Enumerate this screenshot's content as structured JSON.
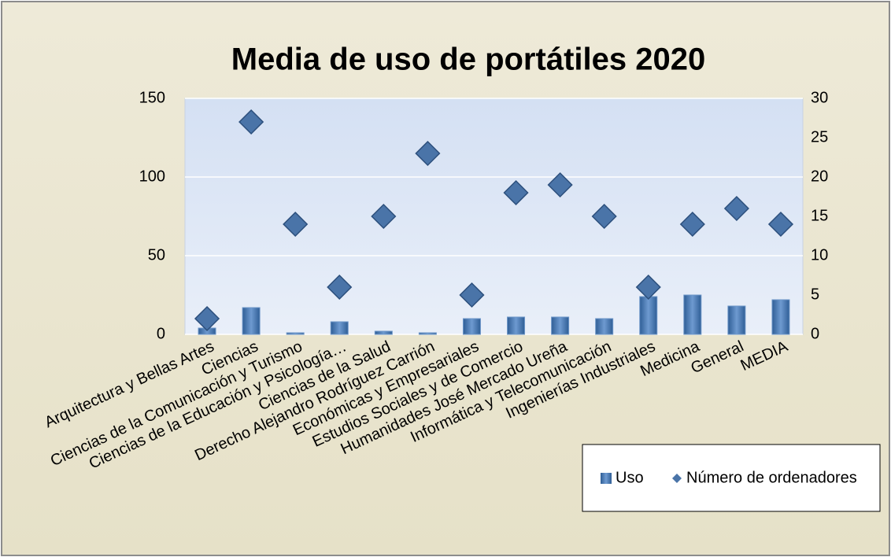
{
  "chart_data": {
    "type": "bar",
    "title": "Media de uso de portátiles 2020",
    "categories": [
      "Arquitectura y Bellas Artes",
      "Ciencias",
      "Ciencias de la Comunicación y Turismo",
      "Ciencias de la Educación y Psicología…",
      "Ciencias de la Salud",
      "Derecho Alejandro Rodríguez Carrión",
      "Económicas y Empresariales",
      "Estudios Sociales y de Comercio",
      "Humanidades José Mercado Ureña",
      "Informática y Telecomunicación",
      "Ingenierías Industriales",
      "Medicina",
      "General",
      "MEDIA"
    ],
    "series": [
      {
        "name": "Uso",
        "type": "bar",
        "color": "#4f81bd",
        "values": [
          4,
          17,
          1,
          8,
          2,
          1,
          10,
          11,
          11,
          10,
          24,
          25,
          18,
          22
        ]
      },
      {
        "name": "Número de ordenadores",
        "type": "scatter",
        "axis": "y2",
        "color": "#4a74a8",
        "values": [
          2,
          27,
          14,
          6,
          15,
          23,
          5,
          18,
          19,
          15,
          6,
          14,
          16,
          14
        ]
      }
    ],
    "ylim": [
      0,
      150
    ],
    "yticks": [
      0,
      50,
      100,
      150
    ],
    "y2lim": [
      0,
      30
    ],
    "y2ticks": [
      0,
      5,
      10,
      15,
      20,
      25,
      30
    ],
    "grid": true,
    "legend": "bottom-right"
  }
}
